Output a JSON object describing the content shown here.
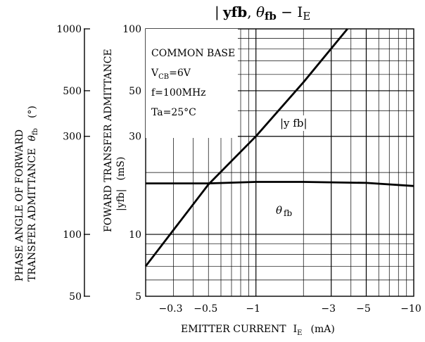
{
  "chart_data": {
    "type": "line",
    "title": "|yfb|, θfb − IE",
    "title_parts": {
      "yfb": "yfb",
      "sep": ", ",
      "theta": "θ",
      "theta_sub": "fb",
      "dash": " − ",
      "ie": "I",
      "ie_sub": "E"
    },
    "x_axis": {
      "label": "EMITTER CURRENT  IE  (mA)",
      "label_parts": {
        "main": "EMITTER CURRENT",
        "sym": "I",
        "sub": "E",
        "unit": "(mA)"
      },
      "scale": "log",
      "range": [
        0.2,
        10
      ],
      "ticks": [
        {
          "value": 0.3,
          "label": "−0.3"
        },
        {
          "value": 0.5,
          "label": "−0.5"
        },
        {
          "value": 1,
          "label": "−1"
        },
        {
          "value": 3,
          "label": "−3"
        },
        {
          "value": 5,
          "label": "−5"
        },
        {
          "value": 10,
          "label": "−10"
        }
      ],
      "minor_ticks": [
        0.3,
        0.4,
        0.5,
        0.6,
        0.7,
        0.8,
        0.9,
        2,
        3,
        4,
        5,
        6,
        7,
        8,
        9
      ]
    },
    "y_axis_right": {
      "label": "FOWARD TRANSFER ADMITTANCE |yfb| (mS)",
      "label_parts": {
        "line1": "FOWARD TRANSFER ADMITTANCE",
        "sym": "|yfb|",
        "unit": "(mS)"
      },
      "scale": "log",
      "range": [
        5,
        100
      ],
      "ticks": [
        {
          "value": 5,
          "label": "5"
        },
        {
          "value": 10,
          "label": "10"
        },
        {
          "value": 30,
          "label": "30"
        },
        {
          "value": 50,
          "label": "50"
        },
        {
          "value": 100,
          "label": "100"
        }
      ],
      "minor_ticks": [
        6,
        7,
        8,
        9,
        20,
        30,
        40,
        50,
        60,
        70,
        80,
        90
      ]
    },
    "y_axis_left": {
      "label": "PHASE ANGLE OF FORWARD TRANSFER ADMITTANCE θfb (°)",
      "label_parts": {
        "line1": "PHASE ANGLE OF FORWARD",
        "line2": "TRANSFER ADMITTANCE",
        "sym": "θ",
        "sub": "fb",
        "unit": "(°)"
      },
      "scale": "log",
      "range": [
        50,
        1000
      ],
      "ticks": [
        {
          "value": 50,
          "label": "50"
        },
        {
          "value": 100,
          "label": "100"
        },
        {
          "value": 300,
          "label": "300"
        },
        {
          "value": 500,
          "label": "500"
        },
        {
          "value": 1000,
          "label": "1000"
        }
      ]
    },
    "conditions": [
      "COMMON BASE",
      "VCB = 6V",
      "f = 100MHz",
      "Ta = 25°C"
    ],
    "condition_parts": {
      "line1": "COMMON BASE",
      "vcb_sym": "V",
      "vcb_sub": "CB",
      "vcb_val": "=6V",
      "freq": "f=100MHz",
      "temp": "Ta=25°C"
    },
    "series": [
      {
        "name": "|yfb|",
        "axis": "right",
        "label_parts": {
          "text": "|y fb|"
        },
        "x": [
          0.2,
          0.3,
          0.5,
          1,
          2,
          3.8
        ],
        "y": [
          7,
          10.5,
          17.5,
          30,
          55,
          100
        ]
      },
      {
        "name": "θfb",
        "axis": "left",
        "label_parts": {
          "sym": "θ",
          "sub": "fb"
        },
        "x": [
          0.2,
          0.5,
          1,
          2,
          5,
          10
        ],
        "y": [
          177,
          177,
          180,
          180,
          178,
          172
        ]
      }
    ],
    "grid": true
  }
}
